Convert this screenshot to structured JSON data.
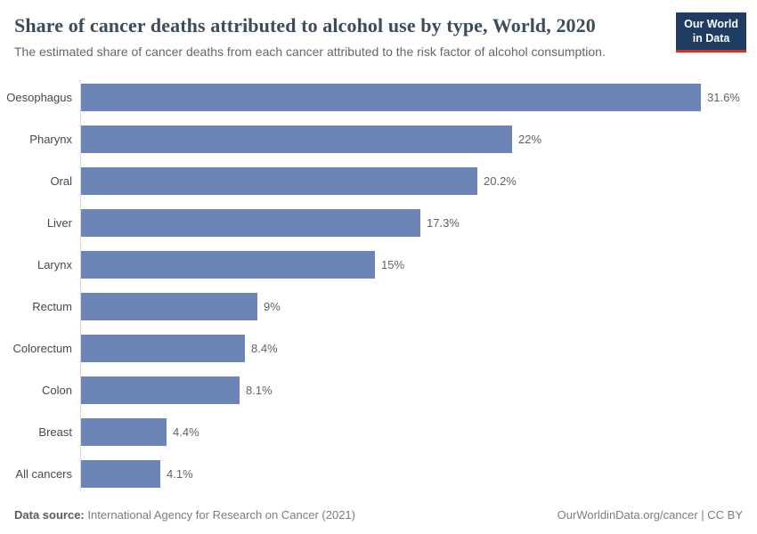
{
  "header": {
    "title": "Share of cancer deaths attributed to alcohol use by type, World, 2020",
    "subtitle": "The estimated share of cancer deaths from each cancer attributed to the risk factor of alcohol consumption.",
    "logo": {
      "line1": "Our World",
      "line2": "in Data"
    }
  },
  "chart_data": {
    "type": "bar",
    "orientation": "horizontal",
    "title": "Share of cancer deaths attributed to alcohol use by type, World, 2020",
    "categories": [
      "Oesophagus",
      "Pharynx",
      "Oral",
      "Liver",
      "Larynx",
      "Rectum",
      "Colorectum",
      "Colon",
      "Breast",
      "All cancers"
    ],
    "values": [
      31.6,
      22,
      20.2,
      17.3,
      15,
      9,
      8.4,
      8.1,
      4.4,
      4.1
    ],
    "value_labels": [
      "31.6%",
      "22%",
      "20.2%",
      "17.3%",
      "15%",
      "9%",
      "8.4%",
      "8.1%",
      "4.4%",
      "4.1%"
    ],
    "xlabel": "",
    "ylabel": "",
    "xlim": [
      0,
      31.6
    ],
    "grid": false,
    "legend": "none",
    "bar_color": "#6c83b5"
  },
  "footer": {
    "datasource_label": "Data source:",
    "datasource_text": " International Agency for Research on Cancer (2021)",
    "credit": "OurWorldinData.org/cancer | CC BY"
  }
}
